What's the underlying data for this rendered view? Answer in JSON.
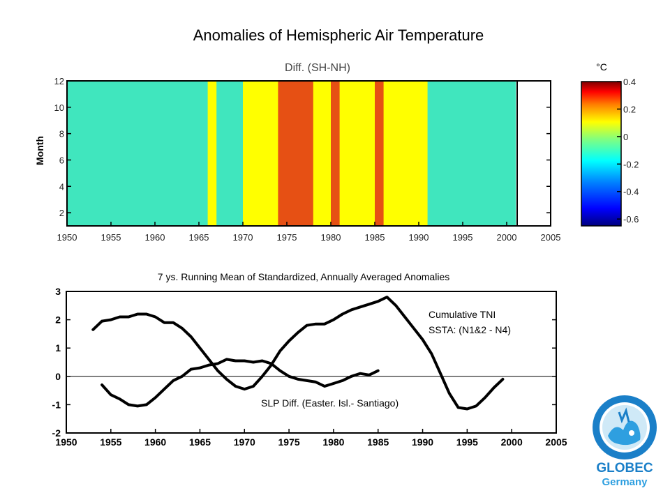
{
  "page_title": "Anomalies of Hemispheric Air Temperature",
  "chart_data": [
    {
      "type": "heatmap",
      "title": "Diff. (SH-NH)",
      "xlabel": "",
      "ylabel": "Month",
      "x_ticks": [
        "1950",
        "1955",
        "1960",
        "1965",
        "1970",
        "1975",
        "1980",
        "1985",
        "1990",
        "1995",
        "2000",
        "2005"
      ],
      "y_ticks": [
        "2",
        "4",
        "6",
        "8",
        "10",
        "12"
      ],
      "xlim": [
        1950,
        2005
      ],
      "ylim": [
        1,
        12
      ],
      "data_end_year": 2001,
      "colorbar_unit": "°C",
      "colorbar_ticks": [
        "0.4",
        "0.2",
        "0",
        "-0.2",
        "-0.4",
        "-0.6"
      ],
      "colorbar_range": [
        -0.65,
        0.4
      ],
      "color_levels": [
        {
          "min": -0.7,
          "max": -0.4,
          "color": "#1464d2"
        },
        {
          "min": -0.4,
          "max": -0.1,
          "color": "#40e6be"
        },
        {
          "min": -0.1,
          "max": 0.1,
          "color": "#ffff00"
        },
        {
          "min": 0.1,
          "max": 0.4,
          "color": "#e65014"
        }
      ],
      "years": [
        1950,
        1951,
        1952,
        1953,
        1954,
        1955,
        1956,
        1957,
        1958,
        1959,
        1960,
        1961,
        1962,
        1963,
        1964,
        1965,
        1966,
        1967,
        1968,
        1969,
        1970,
        1971,
        1972,
        1973,
        1974,
        1975,
        1976,
        1977,
        1978,
        1979,
        1980,
        1981,
        1982,
        1983,
        1984,
        1985,
        1986,
        1987,
        1988,
        1989,
        1990,
        1991,
        1992,
        1993,
        1994,
        1995,
        1996,
        1997,
        1998,
        1999,
        2000
      ],
      "annual_mean_anomaly": [
        -0.4,
        -0.3,
        -0.25,
        -0.2,
        -0.3,
        -0.2,
        -0.2,
        -0.2,
        -0.25,
        -0.3,
        -0.3,
        -0.2,
        -0.2,
        -0.2,
        -0.15,
        -0.15,
        -0.1,
        -0.2,
        -0.2,
        -0.15,
        0.0,
        0.0,
        0.0,
        0.05,
        0.1,
        0.15,
        0.15,
        0.1,
        0.05,
        0.05,
        0.1,
        0.05,
        0.05,
        0.05,
        0.0,
        0.1,
        0.0,
        0.0,
        -0.05,
        -0.05,
        -0.1,
        -0.15,
        -0.15,
        -0.2,
        -0.15,
        -0.2,
        -0.25,
        -0.3,
        -0.35,
        -0.4,
        -0.4
      ]
    },
    {
      "type": "line",
      "title": "7 ys. Running Mean of Standardized, Annually Averaged Anomalies",
      "xlabel": "",
      "ylabel": "",
      "xlim": [
        1950,
        2005
      ],
      "ylim": [
        -2,
        3
      ],
      "x_ticks": [
        "1950",
        "1955",
        "1960",
        "1965",
        "1970",
        "1975",
        "1980",
        "1985",
        "1990",
        "1995",
        "2000",
        "2005"
      ],
      "y_ticks": [
        "3",
        "2",
        "1",
        "0",
        "-1",
        "-2"
      ],
      "zero_line": true,
      "series": [
        {
          "name": "Cumulative TNI SSTA: (N1&2 - N4)",
          "label_lines": [
            "Cumulative TNI",
            "SSTA: (N1&2 - N4)"
          ],
          "x": [
            1953,
            1954,
            1955,
            1956,
            1957,
            1958,
            1959,
            1960,
            1961,
            1962,
            1963,
            1964,
            1965,
            1966,
            1967,
            1968,
            1969,
            1970,
            1971,
            1972,
            1973,
            1974,
            1975,
            1976,
            1977,
            1978,
            1979,
            1980,
            1981,
            1982,
            1983,
            1984,
            1985,
            1986,
            1987,
            1988,
            1989,
            1990,
            1991,
            1992,
            1993,
            1994,
            1995,
            1996,
            1997,
            1998,
            1999
          ],
          "y": [
            1.65,
            1.95,
            2.0,
            2.1,
            2.1,
            2.2,
            2.2,
            2.1,
            1.9,
            1.9,
            1.7,
            1.4,
            1.0,
            0.6,
            0.2,
            -0.1,
            -0.35,
            -0.45,
            -0.35,
            0.0,
            0.4,
            0.9,
            1.25,
            1.55,
            1.8,
            1.85,
            1.85,
            2.0,
            2.2,
            2.35,
            2.45,
            2.55,
            2.65,
            2.8,
            2.5,
            2.1,
            1.7,
            1.3,
            0.8,
            0.1,
            -0.6,
            -1.1,
            -1.15,
            -1.05,
            -0.75,
            -0.4,
            -0.1
          ]
        },
        {
          "name": "SLP Diff. (Easter. Isl.- Santiago)",
          "label_lines": [
            "SLP Diff. (Easter. Isl.- Santiago)"
          ],
          "x": [
            1954,
            1955,
            1956,
            1957,
            1958,
            1959,
            1960,
            1961,
            1962,
            1963,
            1964,
            1965,
            1966,
            1967,
            1968,
            1969,
            1970,
            1971,
            1972,
            1973,
            1974,
            1975,
            1976,
            1977,
            1978,
            1979,
            1980,
            1981,
            1982,
            1983,
            1984,
            1985
          ],
          "y": [
            -0.3,
            -0.65,
            -0.8,
            -1.0,
            -1.05,
            -1.0,
            -0.75,
            -0.45,
            -0.15,
            0.0,
            0.25,
            0.3,
            0.4,
            0.45,
            0.6,
            0.55,
            0.55,
            0.5,
            0.55,
            0.45,
            0.2,
            0.0,
            -0.1,
            -0.15,
            -0.2,
            -0.35,
            -0.25,
            -0.15,
            0.0,
            0.1,
            0.05,
            0.2
          ]
        }
      ]
    }
  ],
  "logo": {
    "text_line1": "GLOBEC",
    "text_line2": "Germany",
    "primary_color": "#1a7fc8",
    "accent_color": "#2e9fe0"
  }
}
